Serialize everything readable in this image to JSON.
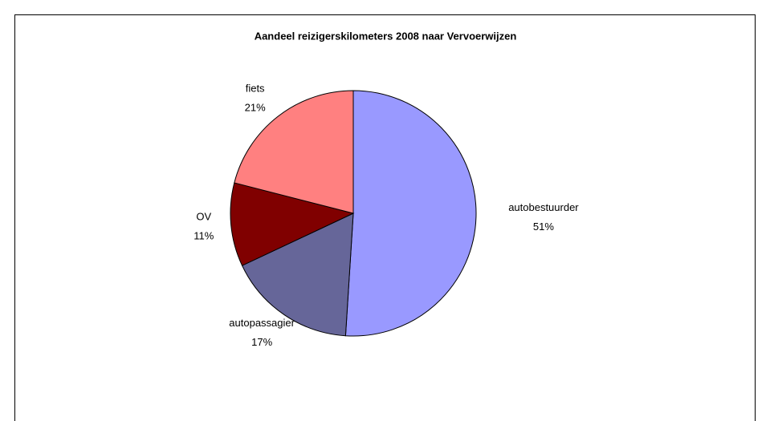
{
  "chart_data": {
    "type": "pie",
    "title": "Aandeel reizigerskilometers 2008 naar Vervoerwijzen",
    "categories": [
      "autobestuurder",
      "autopassagier",
      "OV",
      "fiets"
    ],
    "values": [
      51,
      17,
      11,
      21
    ],
    "value_labels": [
      "51%",
      "17%",
      "11%",
      "21%"
    ],
    "colors": [
      "#9999ff",
      "#666699",
      "#800000",
      "#ff8080"
    ]
  }
}
